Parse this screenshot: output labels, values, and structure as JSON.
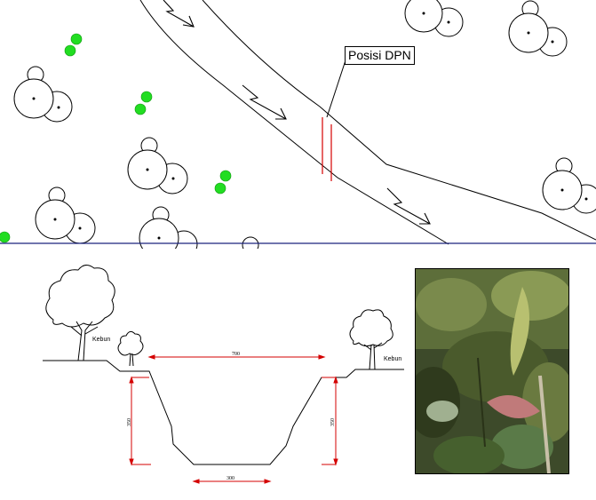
{
  "plan": {
    "label": "Posisi DPN"
  },
  "section": {
    "left_label": "Kebun",
    "right_label": "Kebun",
    "top_width": "700",
    "bottom_width": "300",
    "left_height": "350",
    "right_height": "350"
  },
  "colors": {
    "line": "#000000",
    "red": "#d40000",
    "green_shrub": "#22dd22",
    "divider": "#1a237e"
  }
}
